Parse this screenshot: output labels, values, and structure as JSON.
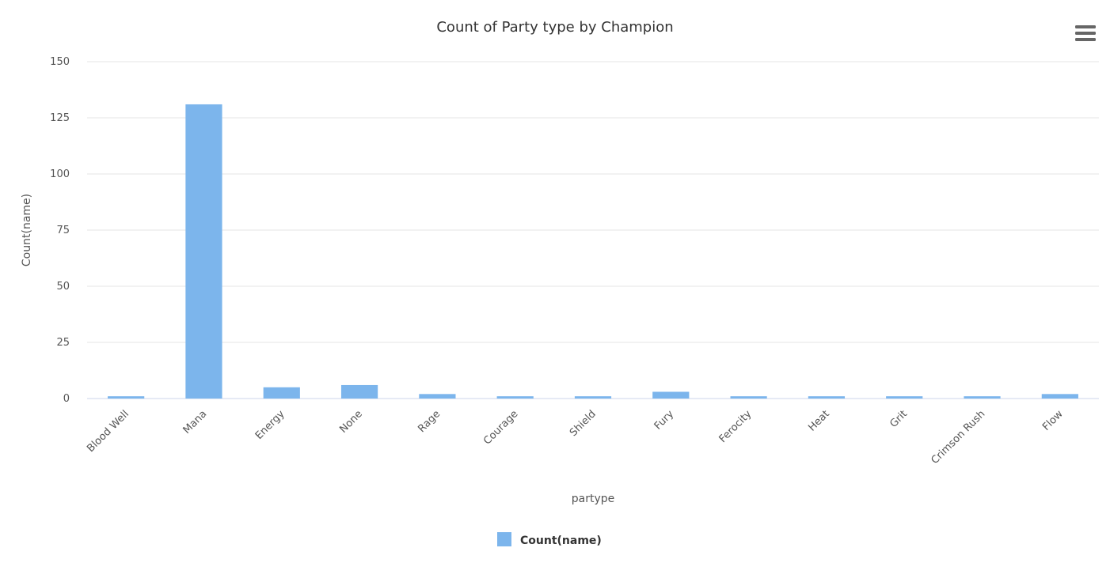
{
  "menu": {
    "icon": "hamburger-menu-icon"
  },
  "chart_data": {
    "type": "bar",
    "title": "Count of Party type by Champion",
    "xlabel": "partype",
    "ylabel": "Count(name)",
    "categories": [
      "Blood Well",
      "Mana",
      "Energy",
      "None",
      "Rage",
      "Courage",
      "Shield",
      "Fury",
      "Ferocity",
      "Heat",
      "Grit",
      "Crimson Rush",
      "Flow"
    ],
    "series": [
      {
        "name": "Count(name)",
        "color": "#7cb5ec",
        "values": [
          1,
          131,
          5,
          6,
          2,
          1,
          1,
          3,
          1,
          1,
          1,
          1,
          2
        ]
      }
    ],
    "ylim": [
      0,
      150
    ],
    "yticks": [
      0,
      25,
      50,
      75,
      100,
      125,
      150
    ],
    "grid": true,
    "legend": "bottom-center"
  }
}
